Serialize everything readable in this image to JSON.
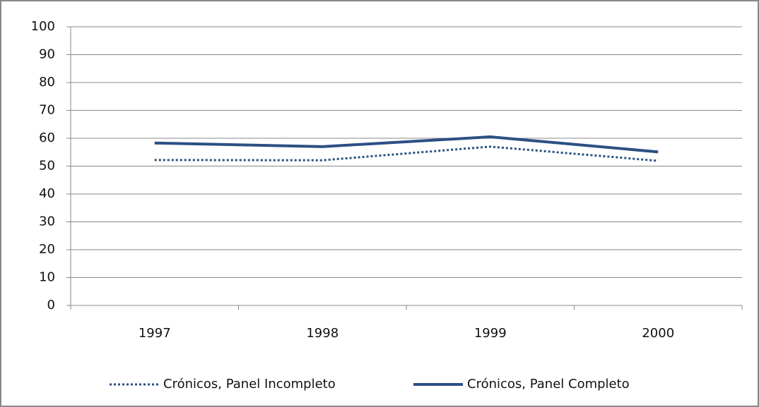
{
  "chart_data": {
    "type": "line",
    "categories": [
      "1997",
      "1998",
      "1999",
      "2000"
    ],
    "series": [
      {
        "name": "Crónicos, Panel Incompleto",
        "color": "#2b5082",
        "style": "dotted",
        "values": [
          52.2,
          52.1,
          57,
          51.9
        ]
      },
      {
        "name": "Crónicos, Panel Completo",
        "color": "#2b5082",
        "style": "solid",
        "values": [
          58.3,
          57,
          60.5,
          55.1
        ]
      }
    ],
    "ylim": [
      0,
      100
    ],
    "yticks": [
      0,
      10,
      20,
      30,
      40,
      50,
      60,
      70,
      80,
      90,
      100
    ],
    "grid": true,
    "legend": "bottom"
  }
}
